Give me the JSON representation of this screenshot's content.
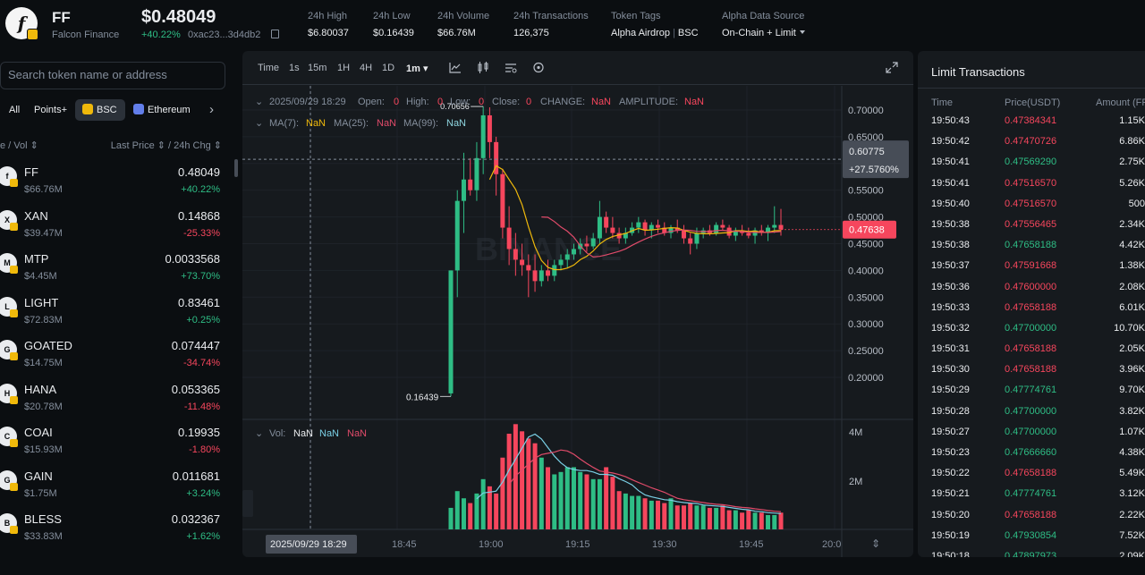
{
  "header": {
    "logo_letter": "f",
    "symbol": "FF",
    "name": "Falcon Finance",
    "price": "$0.48049",
    "change": "+40.22%",
    "address": "0xac23...3d4db2",
    "stats": [
      {
        "label": "24h High",
        "value": "$6.80037"
      },
      {
        "label": "24h Low",
        "value": "$0.16439"
      },
      {
        "label": "24h Volume",
        "value": "$66.76M"
      },
      {
        "label": "24h Transactions",
        "value": "126,375"
      }
    ],
    "token_tags": {
      "label": "Token Tags",
      "tag1": "Alpha Airdrop",
      "tag2": "BSC"
    },
    "data_source": {
      "label": "Alpha Data Source",
      "value": "On-Chain + Limit"
    }
  },
  "left_panel": {
    "search_placeholder": "Search token name or address",
    "filters": {
      "all": "All",
      "points": "Points+",
      "bsc": "BSC",
      "eth": "Ethereum",
      "next": "›"
    },
    "col_left": "e / Vol ⇕",
    "col_right": "Last Price ⇕ / 24h Chg ⇕",
    "tokens": [
      {
        "symbol": "FF",
        "vol": "$66.76M",
        "price": "0.48049",
        "change": "+40.22%",
        "dir": "up",
        "icon": "f"
      },
      {
        "symbol": "XAN",
        "vol": "$39.47M",
        "price": "0.14868",
        "change": "-25.33%",
        "dir": "down",
        "icon": "X"
      },
      {
        "symbol": "MTP",
        "vol": "$4.45M",
        "price": "0.0033568",
        "change": "+73.70%",
        "dir": "up",
        "icon": "M"
      },
      {
        "symbol": "LIGHT",
        "vol": "$72.83M",
        "price": "0.83461",
        "change": "+0.25%",
        "dir": "up",
        "icon": "L"
      },
      {
        "symbol": "GOATED",
        "vol": "$14.75M",
        "price": "0.074447",
        "change": "-34.74%",
        "dir": "down",
        "icon": "G"
      },
      {
        "symbol": "HANA",
        "vol": "$20.78M",
        "price": "0.053365",
        "change": "-11.48%",
        "dir": "down",
        "icon": "H"
      },
      {
        "symbol": "COAI",
        "vol": "$15.93M",
        "price": "0.19935",
        "change": "-1.80%",
        "dir": "down",
        "icon": "C"
      },
      {
        "symbol": "GAIN",
        "vol": "$1.75M",
        "price": "0.011681",
        "change": "+3.24%",
        "dir": "up",
        "icon": "G"
      },
      {
        "symbol": "BLESS",
        "vol": "$33.83M",
        "price": "0.032367",
        "change": "+1.62%",
        "dir": "up",
        "icon": "B"
      }
    ]
  },
  "chart": {
    "timeframes": [
      "Time",
      "1s",
      "15m",
      "1H",
      "4H",
      "1D",
      "1m"
    ],
    "active_timeframe": "1m",
    "info": {
      "date": "2025/09/29 18:29",
      "open_label": "Open:",
      "open": "0",
      "high_label": "High:",
      "high": "0",
      "low_label": "Low:",
      "low": "0",
      "close_label": "Close:",
      "close": "0",
      "change_label": "CHANGE:",
      "change": "NaN",
      "amplitude_label": "AMPLITUDE:",
      "amplitude": "NaN"
    },
    "ma": {
      "ma7_label": "MA(7):",
      "ma7": "NaN",
      "ma25_label": "MA(25):",
      "ma25": "NaN",
      "ma99_label": "MA(99):",
      "ma99": "NaN"
    },
    "vol": {
      "label": "Vol:",
      "v1": "NaN",
      "v2": "NaN",
      "v3": "NaN"
    },
    "price_axis": [
      "0.70000",
      "0.65000",
      "0.60000",
      "0.55000",
      "0.50000",
      "0.45000",
      "0.40000",
      "0.35000",
      "0.30000",
      "0.25000",
      "0.20000"
    ],
    "crosshair_price": "0.60775",
    "crosshair_pct": "+27.5760%",
    "last_price": "0.47638",
    "high_label": "0.70656",
    "low_label": "0.16439",
    "vol_axis": [
      "4M",
      "2M"
    ],
    "time_axis": [
      "18:45",
      "19:00",
      "19:15",
      "19:30",
      "19:45",
      "20:0"
    ],
    "crosshair_time": "2025/09/29 18:29",
    "watermark": "BINANCE",
    "colors": {
      "up": "#2ebd85",
      "down": "#f6465d",
      "ma7": "#f0b90b",
      "ma25": "#e04b6a",
      "ma99": "#8fd6e0",
      "vol_ma1": "#7ad0e6",
      "vol_ma2": "#e04b6a"
    }
  },
  "chart_data": {
    "type": "candlestick",
    "xlabel": "",
    "ylabel": "",
    "ylim": [
      0.15,
      0.72
    ],
    "candles": [
      [
        0.17,
        0.4,
        0.1644,
        0.4
      ],
      [
        0.4,
        0.55,
        0.35,
        0.53
      ],
      [
        0.53,
        0.62,
        0.47,
        0.57
      ],
      [
        0.57,
        0.61,
        0.54,
        0.55
      ],
      [
        0.55,
        0.64,
        0.53,
        0.61
      ],
      [
        0.61,
        0.7066,
        0.58,
        0.69
      ],
      [
        0.69,
        0.705,
        0.61,
        0.64
      ],
      [
        0.64,
        0.65,
        0.54,
        0.58
      ],
      [
        0.58,
        0.59,
        0.46,
        0.48
      ],
      [
        0.48,
        0.52,
        0.41,
        0.44
      ],
      [
        0.44,
        0.47,
        0.39,
        0.42
      ],
      [
        0.42,
        0.45,
        0.39,
        0.41
      ],
      [
        0.41,
        0.43,
        0.35,
        0.4
      ],
      [
        0.4,
        0.43,
        0.36,
        0.38
      ],
      [
        0.38,
        0.41,
        0.37,
        0.4
      ],
      [
        0.4,
        0.42,
        0.38,
        0.39
      ],
      [
        0.39,
        0.42,
        0.38,
        0.41
      ],
      [
        0.41,
        0.43,
        0.4,
        0.42
      ],
      [
        0.42,
        0.44,
        0.405,
        0.43
      ],
      [
        0.43,
        0.45,
        0.42,
        0.44
      ],
      [
        0.44,
        0.46,
        0.43,
        0.45
      ],
      [
        0.45,
        0.465,
        0.435,
        0.445
      ],
      [
        0.445,
        0.47,
        0.44,
        0.46
      ],
      [
        0.46,
        0.53,
        0.45,
        0.5
      ],
      [
        0.5,
        0.51,
        0.47,
        0.48
      ],
      [
        0.48,
        0.5,
        0.46,
        0.47
      ],
      [
        0.47,
        0.48,
        0.45,
        0.46
      ],
      [
        0.46,
        0.48,
        0.45,
        0.47
      ],
      [
        0.47,
        0.49,
        0.465,
        0.48
      ],
      [
        0.48,
        0.5,
        0.47,
        0.49
      ],
      [
        0.49,
        0.495,
        0.465,
        0.475
      ],
      [
        0.475,
        0.49,
        0.46,
        0.485
      ],
      [
        0.485,
        0.495,
        0.47,
        0.48
      ],
      [
        0.48,
        0.49,
        0.465,
        0.47
      ],
      [
        0.47,
        0.485,
        0.46,
        0.48
      ],
      [
        0.48,
        0.495,
        0.47,
        0.475
      ],
      [
        0.475,
        0.485,
        0.45,
        0.46
      ],
      [
        0.46,
        0.47,
        0.43,
        0.45
      ],
      [
        0.45,
        0.48,
        0.44,
        0.47
      ],
      [
        0.47,
        0.48,
        0.46,
        0.475
      ],
      [
        0.475,
        0.485,
        0.465,
        0.47
      ],
      [
        0.47,
        0.49,
        0.465,
        0.485
      ],
      [
        0.485,
        0.495,
        0.475,
        0.48
      ],
      [
        0.48,
        0.485,
        0.46,
        0.465
      ],
      [
        0.465,
        0.48,
        0.455,
        0.475
      ],
      [
        0.475,
        0.485,
        0.465,
        0.47
      ],
      [
        0.47,
        0.48,
        0.46,
        0.465
      ],
      [
        0.465,
        0.48,
        0.45,
        0.475
      ],
      [
        0.475,
        0.485,
        0.465,
        0.47
      ],
      [
        0.47,
        0.485,
        0.455,
        0.48
      ],
      [
        0.48,
        0.52,
        0.47,
        0.485
      ],
      [
        0.485,
        0.515,
        0.465,
        0.4764
      ]
    ],
    "volume": [
      0.9,
      1.6,
      1.3,
      1.1,
      1.5,
      2.1,
      1.8,
      1.5,
      3.0,
      4.0,
      4.4,
      4.1,
      3.8,
      3.6,
      3.0,
      2.6,
      2.3,
      2.4,
      2.6,
      2.6,
      2.4,
      2.3,
      2.1,
      2.1,
      2.6,
      2.2,
      1.6,
      1.5,
      1.4,
      1.4,
      1.3,
      1.2,
      1.2,
      1.1,
      1.3,
      1.0,
      1.0,
      1.1,
      1.0,
      1.0,
      0.9,
      0.9,
      1.0,
      0.8,
      0.8,
      0.7,
      0.8,
      0.7,
      0.7,
      0.6,
      0.6,
      0.7
    ]
  },
  "trades": {
    "title": "Limit Transactions",
    "headers": [
      "Time",
      "Price(USDT)",
      "Amount (FF)"
    ],
    "rows": [
      {
        "time": "19:50:43",
        "price": "0.47384341",
        "amount": "1.15K",
        "dir": "down"
      },
      {
        "time": "19:50:42",
        "price": "0.47470726",
        "amount": "6.86K",
        "dir": "down"
      },
      {
        "time": "19:50:41",
        "price": "0.47569290",
        "amount": "2.75K",
        "dir": "up"
      },
      {
        "time": "19:50:41",
        "price": "0.47516570",
        "amount": "5.26K",
        "dir": "down"
      },
      {
        "time": "19:50:40",
        "price": "0.47516570",
        "amount": "500",
        "dir": "down"
      },
      {
        "time": "19:50:38",
        "price": "0.47556465",
        "amount": "2.34K",
        "dir": "down"
      },
      {
        "time": "19:50:38",
        "price": "0.47658188",
        "amount": "4.42K",
        "dir": "up"
      },
      {
        "time": "19:50:37",
        "price": "0.47591668",
        "amount": "1.38K",
        "dir": "down"
      },
      {
        "time": "19:50:36",
        "price": "0.47600000",
        "amount": "2.08K",
        "dir": "down"
      },
      {
        "time": "19:50:33",
        "price": "0.47658188",
        "amount": "6.01K",
        "dir": "down"
      },
      {
        "time": "19:50:32",
        "price": "0.47700000",
        "amount": "10.70K",
        "dir": "up"
      },
      {
        "time": "19:50:31",
        "price": "0.47658188",
        "amount": "2.05K",
        "dir": "down"
      },
      {
        "time": "19:50:30",
        "price": "0.47658188",
        "amount": "3.96K",
        "dir": "down"
      },
      {
        "time": "19:50:29",
        "price": "0.47774761",
        "amount": "9.70K",
        "dir": "up"
      },
      {
        "time": "19:50:28",
        "price": "0.47700000",
        "amount": "3.82K",
        "dir": "up"
      },
      {
        "time": "19:50:27",
        "price": "0.47700000",
        "amount": "1.07K",
        "dir": "up"
      },
      {
        "time": "19:50:23",
        "price": "0.47666660",
        "amount": "4.38K",
        "dir": "up"
      },
      {
        "time": "19:50:22",
        "price": "0.47658188",
        "amount": "5.49K",
        "dir": "down"
      },
      {
        "time": "19:50:21",
        "price": "0.47774761",
        "amount": "3.12K",
        "dir": "up"
      },
      {
        "time": "19:50:20",
        "price": "0.47658188",
        "amount": "2.22K",
        "dir": "down"
      },
      {
        "time": "19:50:19",
        "price": "0.47930854",
        "amount": "7.52K",
        "dir": "up"
      },
      {
        "time": "19:50:18",
        "price": "0.47897973",
        "amount": "2.09K",
        "dir": "up"
      }
    ]
  }
}
